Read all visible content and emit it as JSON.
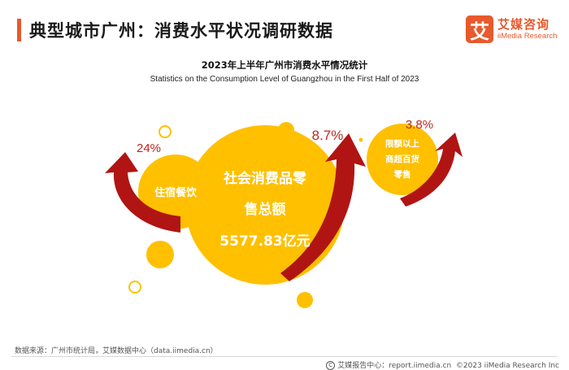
{
  "header": {
    "title": "典型城市广州：消费水平状况调研数据",
    "logo_mark": "艾",
    "logo_cn": "艾媒咨询",
    "logo_en": "iiMedia Research",
    "accent_color": "#e8592c"
  },
  "chart_data": {
    "type": "bubble",
    "title": "2023年上半年广州市消费水平情况统计",
    "subtitle": "Statistics on the Consumption Level of Guangzhou in the First Half of 2023",
    "main": {
      "label_line1": "社会消费品零",
      "label_line2": "售总额",
      "value": "5577.83亿元"
    },
    "series": [
      {
        "name": "住宿餐饮",
        "growth": "24%",
        "growth_value": 24
      },
      {
        "name": "限额以上商超百货零售",
        "label_line1": "限额以上",
        "label_line2": "商超百货",
        "label_line3": "零售",
        "growth": "3.8%",
        "growth_value": 3.8
      },
      {
        "name": "社会消费品零售总额",
        "growth": "8.7%",
        "growth_value": 8.7
      }
    ],
    "colors": {
      "bubble": "#ffc000",
      "arrow": "#b01513",
      "growth_text": "#c0271f"
    }
  },
  "footer": {
    "source": "数据来源：广州市统计局，艾媒数据中心（data.iimedia.cn）",
    "report_center": "艾媒报告中心：report.iimedia.cn",
    "copyright": "©2023 iiMedia Research Inc"
  }
}
